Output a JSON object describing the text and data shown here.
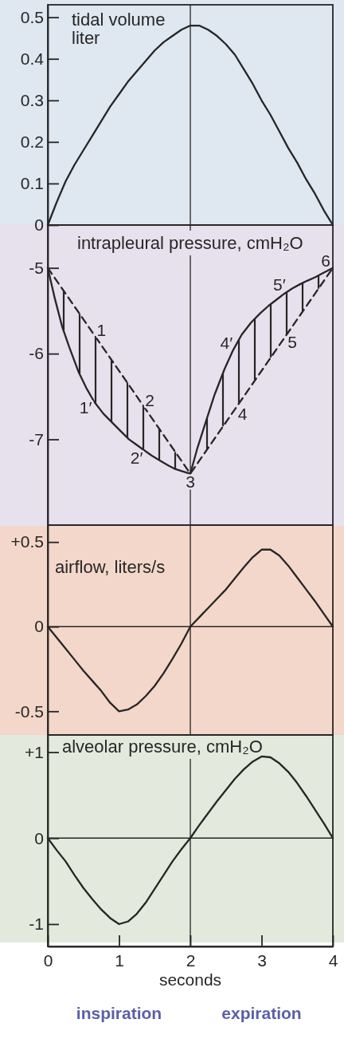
{
  "chart_data": [
    {
      "type": "line",
      "title": "tidal volume\nliter",
      "x": [
        0,
        0.125,
        0.25,
        0.375,
        0.5,
        0.625,
        0.75,
        0.875,
        1,
        1.125,
        1.25,
        1.375,
        1.5,
        1.625,
        1.75,
        1.875,
        2,
        2.125,
        2.25,
        2.375,
        2.5,
        2.625,
        2.75,
        2.875,
        3,
        3.125,
        3.25,
        3.375,
        3.5,
        3.625,
        3.75,
        3.875,
        4
      ],
      "series": [
        {
          "color": "#262626",
          "values": [
            0,
            0.055,
            0.105,
            0.145,
            0.18,
            0.215,
            0.25,
            0.285,
            0.315,
            0.345,
            0.37,
            0.395,
            0.42,
            0.44,
            0.455,
            0.47,
            0.48,
            0.48,
            0.47,
            0.455,
            0.435,
            0.41,
            0.375,
            0.34,
            0.3,
            0.265,
            0.225,
            0.185,
            0.15,
            0.11,
            0.075,
            0.035,
            0
          ]
        }
      ],
      "xlim": [
        0,
        4
      ],
      "ylim": [
        0,
        0.53
      ],
      "yticks": [
        0,
        0.1,
        0.2,
        0.3,
        0.4,
        0.5
      ],
      "tick_labels": "y",
      "ref_lines": [
        {
          "axis": "x",
          "value": 2
        }
      ]
    },
    {
      "type": "line",
      "title": "intrapleural pressure, cmH₂O",
      "series": [
        {
          "color": "#262626",
          "x": [
            0,
            0.1,
            0.2,
            0.3,
            0.43,
            0.54,
            0.65,
            0.78,
            0.91,
            1.03,
            1.14,
            1.24,
            1.34,
            1.46,
            1.58,
            1.68,
            1.77,
            1.88,
            2,
            2.1,
            2.2,
            2.34,
            2.48,
            2.6,
            2.72,
            2.85,
            2.98,
            3.1,
            3.21,
            3.32,
            3.43,
            3.54,
            3.64,
            3.75,
            3.86,
            4
          ],
          "values": [
            -5,
            -5.36,
            -5.68,
            -5.92,
            -6.21,
            -6.4,
            -6.56,
            -6.7,
            -6.81,
            -6.91,
            -7,
            -7.06,
            -7.12,
            -7.19,
            -7.25,
            -7.3,
            -7.34,
            -7.37,
            -7.4,
            -7.1,
            -6.84,
            -6.48,
            -6.18,
            -5.96,
            -5.78,
            -5.64,
            -5.53,
            -5.44,
            -5.37,
            -5.3,
            -5.24,
            -5.19,
            -5.15,
            -5.11,
            -5.06,
            -5
          ]
        },
        {
          "color": "#262626",
          "line_style": "dashed",
          "x": [
            0,
            2,
            4
          ],
          "values": [
            -5,
            -7.4,
            -5
          ]
        }
      ],
      "annotations": [
        {
          "text": "1",
          "x": 0.65,
          "y": -5.78
        },
        {
          "text": "1′",
          "x": 0.65,
          "y": -6.56
        },
        {
          "text": "2",
          "x": 1.33,
          "y": -6.6
        },
        {
          "text": "2′",
          "x": 1.33,
          "y": -7.11
        },
        {
          "text": "3",
          "x": 2,
          "y": -7.4
        },
        {
          "text": "4",
          "x": 2.63,
          "y": -6.64
        },
        {
          "text": "4′",
          "x": 2.63,
          "y": -5.92
        },
        {
          "text": "5",
          "x": 3.33,
          "y": -5.8
        },
        {
          "text": "5′",
          "x": 3.33,
          "y": -5.29
        },
        {
          "text": "6",
          "x": 4,
          "y": -5
        }
      ],
      "xlim": [
        0,
        4
      ],
      "ylim": [
        -8,
        -4.5
      ],
      "yticks": [
        -7,
        -6,
        -5
      ],
      "tick_labels": "y",
      "ref_lines": [
        {
          "axis": "x",
          "value": 2
        }
      ]
    },
    {
      "type": "line",
      "title": "airflow, liters/s",
      "x": [
        0,
        0.125,
        0.25,
        0.375,
        0.5,
        0.625,
        0.75,
        0.875,
        1,
        1.125,
        1.25,
        1.375,
        1.5,
        1.625,
        1.75,
        1.875,
        2,
        2.125,
        2.25,
        2.375,
        2.5,
        2.625,
        2.75,
        2.875,
        3,
        3.125,
        3.25,
        3.375,
        3.5,
        3.625,
        3.75,
        3.875,
        4
      ],
      "series": [
        {
          "color": "#262626",
          "values": [
            0,
            -0.065,
            -0.13,
            -0.195,
            -0.26,
            -0.32,
            -0.38,
            -0.45,
            -0.5,
            -0.49,
            -0.46,
            -0.41,
            -0.35,
            -0.275,
            -0.19,
            -0.1,
            0,
            0.055,
            0.11,
            0.165,
            0.22,
            0.285,
            0.35,
            0.41,
            0.455,
            0.455,
            0.42,
            0.36,
            0.29,
            0.22,
            0.15,
            0.075,
            0
          ]
        }
      ],
      "xlim": [
        0,
        4
      ],
      "ylim": [
        -0.64,
        0.6
      ],
      "yticks": [
        {
          "value": 0.5,
          "label": "+0.5"
        },
        0,
        -0.5
      ],
      "tick_labels": "y",
      "ref_lines": [
        {
          "axis": "x",
          "value": 2
        },
        {
          "axis": "y",
          "value": 0
        }
      ]
    },
    {
      "type": "line",
      "title": "alveolar pressure, cmH₂O",
      "xlabel": "seconds",
      "annotations": [
        "inspiration",
        "expiration"
      ],
      "x": [
        0,
        0.125,
        0.25,
        0.375,
        0.5,
        0.625,
        0.75,
        0.875,
        1,
        1.125,
        1.25,
        1.375,
        1.5,
        1.625,
        1.75,
        1.875,
        2,
        2.125,
        2.25,
        2.375,
        2.5,
        2.625,
        2.75,
        2.875,
        3,
        3.125,
        3.25,
        3.375,
        3.5,
        3.625,
        3.75,
        3.875,
        4
      ],
      "series": [
        {
          "color": "#262626",
          "values": [
            0,
            -0.14,
            -0.27,
            -0.43,
            -0.58,
            -0.71,
            -0.83,
            -0.93,
            -1,
            -0.97,
            -0.88,
            -0.75,
            -0.59,
            -0.43,
            -0.27,
            -0.13,
            0,
            0.15,
            0.29,
            0.43,
            0.56,
            0.69,
            0.8,
            0.89,
            0.95,
            0.94,
            0.87,
            0.77,
            0.64,
            0.49,
            0.33,
            0.17,
            0
          ]
        }
      ],
      "xlim": [
        0,
        4
      ],
      "ylim": [
        -1.26,
        1.2
      ],
      "xticks": [
        0,
        1,
        2,
        3,
        4
      ],
      "yticks": [
        {
          "value": 1,
          "label": "+1"
        },
        0,
        -1
      ],
      "ref_lines": [
        {
          "axis": "x",
          "value": 2
        },
        {
          "axis": "y",
          "value": 0
        }
      ]
    }
  ]
}
